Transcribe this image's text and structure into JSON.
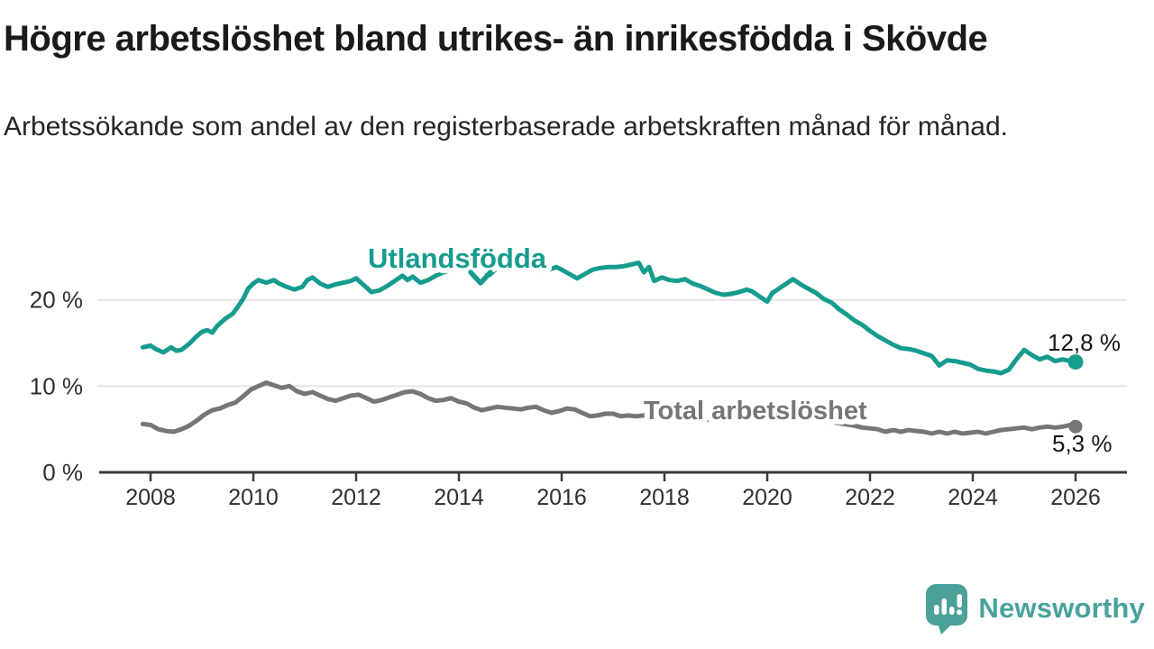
{
  "header": {
    "title": "Högre arbetslöshet bland utrikes- än inrikesfödda i Skövde",
    "subtitle": "Arbetssökande som andel av den registerbaserade arbetskraften månad för månad."
  },
  "chart_data": {
    "type": "line",
    "x_unit": "year (monthly series)",
    "xlim": [
      2007,
      2027
    ],
    "ylim": [
      0,
      27.6
    ],
    "grid": "horizontal",
    "axis_color": "#3a3a3a",
    "grid_color": "#e4e4e4",
    "tick_text_color": "#2f2f2f",
    "value_label_color": "#161616",
    "y_ticks": [
      {
        "v": 0,
        "label": "0 %"
      },
      {
        "v": 10,
        "label": "10 %"
      },
      {
        "v": 20,
        "label": "20 %"
      }
    ],
    "x_ticks": [
      {
        "v": 2008,
        "label": "2008"
      },
      {
        "v": 2010,
        "label": "2010"
      },
      {
        "v": 2012,
        "label": "2012"
      },
      {
        "v": 2014,
        "label": "2014"
      },
      {
        "v": 2016,
        "label": "2016"
      },
      {
        "v": 2018,
        "label": "2018"
      },
      {
        "v": 2020,
        "label": "2020"
      },
      {
        "v": 2022,
        "label": "2022"
      },
      {
        "v": 2024,
        "label": "2024"
      },
      {
        "v": 2026,
        "label": "2026"
      }
    ],
    "series": [
      {
        "name": "Utlandsfödda",
        "color": "#169c8f",
        "end_value": 12.8,
        "end_label": "12,8 %",
        "points": [
          [
            2007.85,
            14.5
          ],
          [
            2008.0,
            14.7
          ],
          [
            2008.1,
            14.3
          ],
          [
            2008.25,
            13.9
          ],
          [
            2008.4,
            14.5
          ],
          [
            2008.5,
            14.1
          ],
          [
            2008.6,
            14.2
          ],
          [
            2008.75,
            14.9
          ],
          [
            2008.9,
            15.8
          ],
          [
            2009.0,
            16.3
          ],
          [
            2009.1,
            16.5
          ],
          [
            2009.2,
            16.2
          ],
          [
            2009.3,
            17.0
          ],
          [
            2009.45,
            17.8
          ],
          [
            2009.6,
            18.4
          ],
          [
            2009.7,
            19.2
          ],
          [
            2009.8,
            20.1
          ],
          [
            2009.9,
            21.3
          ],
          [
            2010.0,
            21.9
          ],
          [
            2010.1,
            22.3
          ],
          [
            2010.25,
            22.0
          ],
          [
            2010.4,
            22.3
          ],
          [
            2010.5,
            21.9
          ],
          [
            2010.65,
            21.5
          ],
          [
            2010.8,
            21.2
          ],
          [
            2010.95,
            21.5
          ],
          [
            2011.05,
            22.3
          ],
          [
            2011.15,
            22.6
          ],
          [
            2011.3,
            21.9
          ],
          [
            2011.45,
            21.5
          ],
          [
            2011.6,
            21.8
          ],
          [
            2011.75,
            22.0
          ],
          [
            2011.9,
            22.2
          ],
          [
            2012.0,
            22.5
          ],
          [
            2012.15,
            21.7
          ],
          [
            2012.3,
            20.9
          ],
          [
            2012.45,
            21.1
          ],
          [
            2012.6,
            21.6
          ],
          [
            2012.75,
            22.2
          ],
          [
            2012.9,
            22.8
          ],
          [
            2013.0,
            22.3
          ],
          [
            2013.1,
            22.7
          ],
          [
            2013.25,
            22.0
          ],
          [
            2013.4,
            22.3
          ],
          [
            2013.55,
            22.8
          ],
          [
            2013.7,
            23.2
          ],
          [
            2013.85,
            23.5
          ],
          [
            2014.0,
            23.8
          ],
          [
            2014.15,
            23.5
          ],
          [
            2014.3,
            23.9
          ],
          [
            2014.45,
            23.7
          ],
          [
            2014.6,
            22.9
          ],
          [
            2014.7,
            23.5
          ],
          [
            2014.85,
            23.7
          ],
          [
            2015.0,
            23.6
          ],
          [
            2015.15,
            23.7
          ],
          [
            2015.3,
            23.5
          ],
          [
            2015.45,
            23.6
          ],
          [
            2015.6,
            23.4
          ],
          [
            2015.75,
            23.5
          ],
          [
            2015.9,
            23.8
          ],
          [
            2016.0,
            23.5
          ],
          [
            2016.15,
            23.0
          ],
          [
            2016.3,
            22.5
          ],
          [
            2016.45,
            23.0
          ],
          [
            2016.6,
            23.5
          ],
          [
            2016.75,
            23.7
          ],
          [
            2016.9,
            23.8
          ],
          [
            2017.05,
            23.8
          ],
          [
            2017.2,
            23.9
          ],
          [
            2017.35,
            24.1
          ],
          [
            2017.5,
            24.3
          ],
          [
            2017.6,
            23.2
          ],
          [
            2017.7,
            23.8
          ],
          [
            2017.8,
            22.2
          ],
          [
            2017.95,
            22.6
          ],
          [
            2018.1,
            22.3
          ],
          [
            2018.25,
            22.2
          ],
          [
            2018.4,
            22.4
          ],
          [
            2018.55,
            21.9
          ],
          [
            2018.7,
            21.6
          ],
          [
            2018.85,
            21.2
          ],
          [
            2019.0,
            20.8
          ],
          [
            2019.15,
            20.6
          ],
          [
            2019.3,
            20.7
          ],
          [
            2019.45,
            20.9
          ],
          [
            2019.6,
            21.2
          ],
          [
            2019.7,
            21.0
          ],
          [
            2019.85,
            20.4
          ],
          [
            2020.0,
            19.8
          ],
          [
            2020.1,
            20.8
          ],
          [
            2020.25,
            21.4
          ],
          [
            2020.4,
            22.0
          ],
          [
            2020.5,
            22.4
          ],
          [
            2020.65,
            21.8
          ],
          [
            2020.8,
            21.3
          ],
          [
            2020.95,
            20.8
          ],
          [
            2021.1,
            20.1
          ],
          [
            2021.25,
            19.7
          ],
          [
            2021.4,
            18.9
          ],
          [
            2021.55,
            18.3
          ],
          [
            2021.7,
            17.6
          ],
          [
            2021.85,
            17.1
          ],
          [
            2022.0,
            16.4
          ],
          [
            2022.15,
            15.8
          ],
          [
            2022.3,
            15.3
          ],
          [
            2022.45,
            14.8
          ],
          [
            2022.6,
            14.4
          ],
          [
            2022.75,
            14.3
          ],
          [
            2022.9,
            14.1
          ],
          [
            2023.05,
            13.8
          ],
          [
            2023.2,
            13.5
          ],
          [
            2023.35,
            12.4
          ],
          [
            2023.5,
            13.0
          ],
          [
            2023.65,
            12.9
          ],
          [
            2023.8,
            12.7
          ],
          [
            2023.95,
            12.5
          ],
          [
            2024.1,
            12.0
          ],
          [
            2024.25,
            11.8
          ],
          [
            2024.4,
            11.7
          ],
          [
            2024.55,
            11.5
          ],
          [
            2024.7,
            11.9
          ],
          [
            2024.85,
            13.1
          ],
          [
            2025.0,
            14.2
          ],
          [
            2025.15,
            13.6
          ],
          [
            2025.3,
            13.1
          ],
          [
            2025.45,
            13.4
          ],
          [
            2025.6,
            12.9
          ],
          [
            2025.75,
            13.1
          ],
          [
            2025.9,
            12.9
          ],
          [
            2026.0,
            12.8
          ]
        ]
      },
      {
        "name": "Total arbetslöshet",
        "color": "#767676",
        "end_value": 5.3,
        "end_label": "5,3 %",
        "points": [
          [
            2007.85,
            5.6
          ],
          [
            2008.0,
            5.5
          ],
          [
            2008.15,
            5.0
          ],
          [
            2008.3,
            4.8
          ],
          [
            2008.45,
            4.7
          ],
          [
            2008.6,
            5.0
          ],
          [
            2008.75,
            5.4
          ],
          [
            2008.9,
            6.0
          ],
          [
            2009.05,
            6.7
          ],
          [
            2009.2,
            7.2
          ],
          [
            2009.35,
            7.4
          ],
          [
            2009.5,
            7.8
          ],
          [
            2009.65,
            8.1
          ],
          [
            2009.8,
            8.8
          ],
          [
            2009.95,
            9.6
          ],
          [
            2010.1,
            10.0
          ],
          [
            2010.25,
            10.4
          ],
          [
            2010.4,
            10.1
          ],
          [
            2010.55,
            9.8
          ],
          [
            2010.7,
            10.0
          ],
          [
            2010.85,
            9.4
          ],
          [
            2011.0,
            9.1
          ],
          [
            2011.15,
            9.3
          ],
          [
            2011.3,
            8.9
          ],
          [
            2011.45,
            8.5
          ],
          [
            2011.6,
            8.3
          ],
          [
            2011.75,
            8.6
          ],
          [
            2011.9,
            8.9
          ],
          [
            2012.05,
            9.0
          ],
          [
            2012.2,
            8.6
          ],
          [
            2012.35,
            8.2
          ],
          [
            2012.5,
            8.4
          ],
          [
            2012.65,
            8.7
          ],
          [
            2012.8,
            9.0
          ],
          [
            2012.95,
            9.3
          ],
          [
            2013.1,
            9.4
          ],
          [
            2013.25,
            9.1
          ],
          [
            2013.4,
            8.6
          ],
          [
            2013.55,
            8.3
          ],
          [
            2013.7,
            8.4
          ],
          [
            2013.85,
            8.6
          ],
          [
            2014.0,
            8.2
          ],
          [
            2014.15,
            8.0
          ],
          [
            2014.3,
            7.5
          ],
          [
            2014.45,
            7.2
          ],
          [
            2014.6,
            7.4
          ],
          [
            2014.75,
            7.6
          ],
          [
            2014.9,
            7.5
          ],
          [
            2015.05,
            7.4
          ],
          [
            2015.2,
            7.3
          ],
          [
            2015.35,
            7.5
          ],
          [
            2015.5,
            7.6
          ],
          [
            2015.65,
            7.2
          ],
          [
            2015.8,
            6.9
          ],
          [
            2015.95,
            7.1
          ],
          [
            2016.1,
            7.4
          ],
          [
            2016.25,
            7.3
          ],
          [
            2016.4,
            6.9
          ],
          [
            2016.55,
            6.5
          ],
          [
            2016.7,
            6.6
          ],
          [
            2016.85,
            6.8
          ],
          [
            2017.0,
            6.8
          ],
          [
            2017.15,
            6.5
          ],
          [
            2017.3,
            6.6
          ],
          [
            2017.45,
            6.5
          ],
          [
            2017.6,
            6.6
          ],
          [
            2017.8,
            6.5
          ],
          [
            2018.0,
            6.4
          ],
          [
            2018.3,
            6.3
          ],
          [
            2018.6,
            6.2
          ],
          [
            2018.9,
            6.1
          ],
          [
            2019.2,
            6.0
          ],
          [
            2019.5,
            6.0
          ],
          [
            2019.8,
            6.1
          ],
          [
            2020.1,
            6.3
          ],
          [
            2020.4,
            6.4
          ],
          [
            2020.7,
            6.3
          ],
          [
            2021.0,
            6.0
          ],
          [
            2021.3,
            5.8
          ],
          [
            2021.5,
            5.6
          ],
          [
            2021.7,
            5.4
          ],
          [
            2021.85,
            5.2
          ],
          [
            2022.0,
            5.1
          ],
          [
            2022.15,
            5.0
          ],
          [
            2022.3,
            4.7
          ],
          [
            2022.45,
            4.9
          ],
          [
            2022.6,
            4.7
          ],
          [
            2022.75,
            4.9
          ],
          [
            2022.9,
            4.8
          ],
          [
            2023.05,
            4.7
          ],
          [
            2023.2,
            4.5
          ],
          [
            2023.35,
            4.7
          ],
          [
            2023.5,
            4.5
          ],
          [
            2023.65,
            4.7
          ],
          [
            2023.8,
            4.5
          ],
          [
            2023.95,
            4.6
          ],
          [
            2024.1,
            4.7
          ],
          [
            2024.25,
            4.5
          ],
          [
            2024.4,
            4.7
          ],
          [
            2024.55,
            4.9
          ],
          [
            2024.7,
            5.0
          ],
          [
            2024.85,
            5.1
          ],
          [
            2025.0,
            5.2
          ],
          [
            2025.15,
            5.0
          ],
          [
            2025.3,
            5.2
          ],
          [
            2025.45,
            5.3
          ],
          [
            2025.6,
            5.2
          ],
          [
            2025.75,
            5.3
          ],
          [
            2025.9,
            5.5
          ],
          [
            2026.0,
            5.3
          ]
        ]
      }
    ]
  },
  "footer": {
    "brand": "Newsworthy",
    "brand_color": "#47a29b",
    "logo_bubble_color": "#4ba19a"
  }
}
